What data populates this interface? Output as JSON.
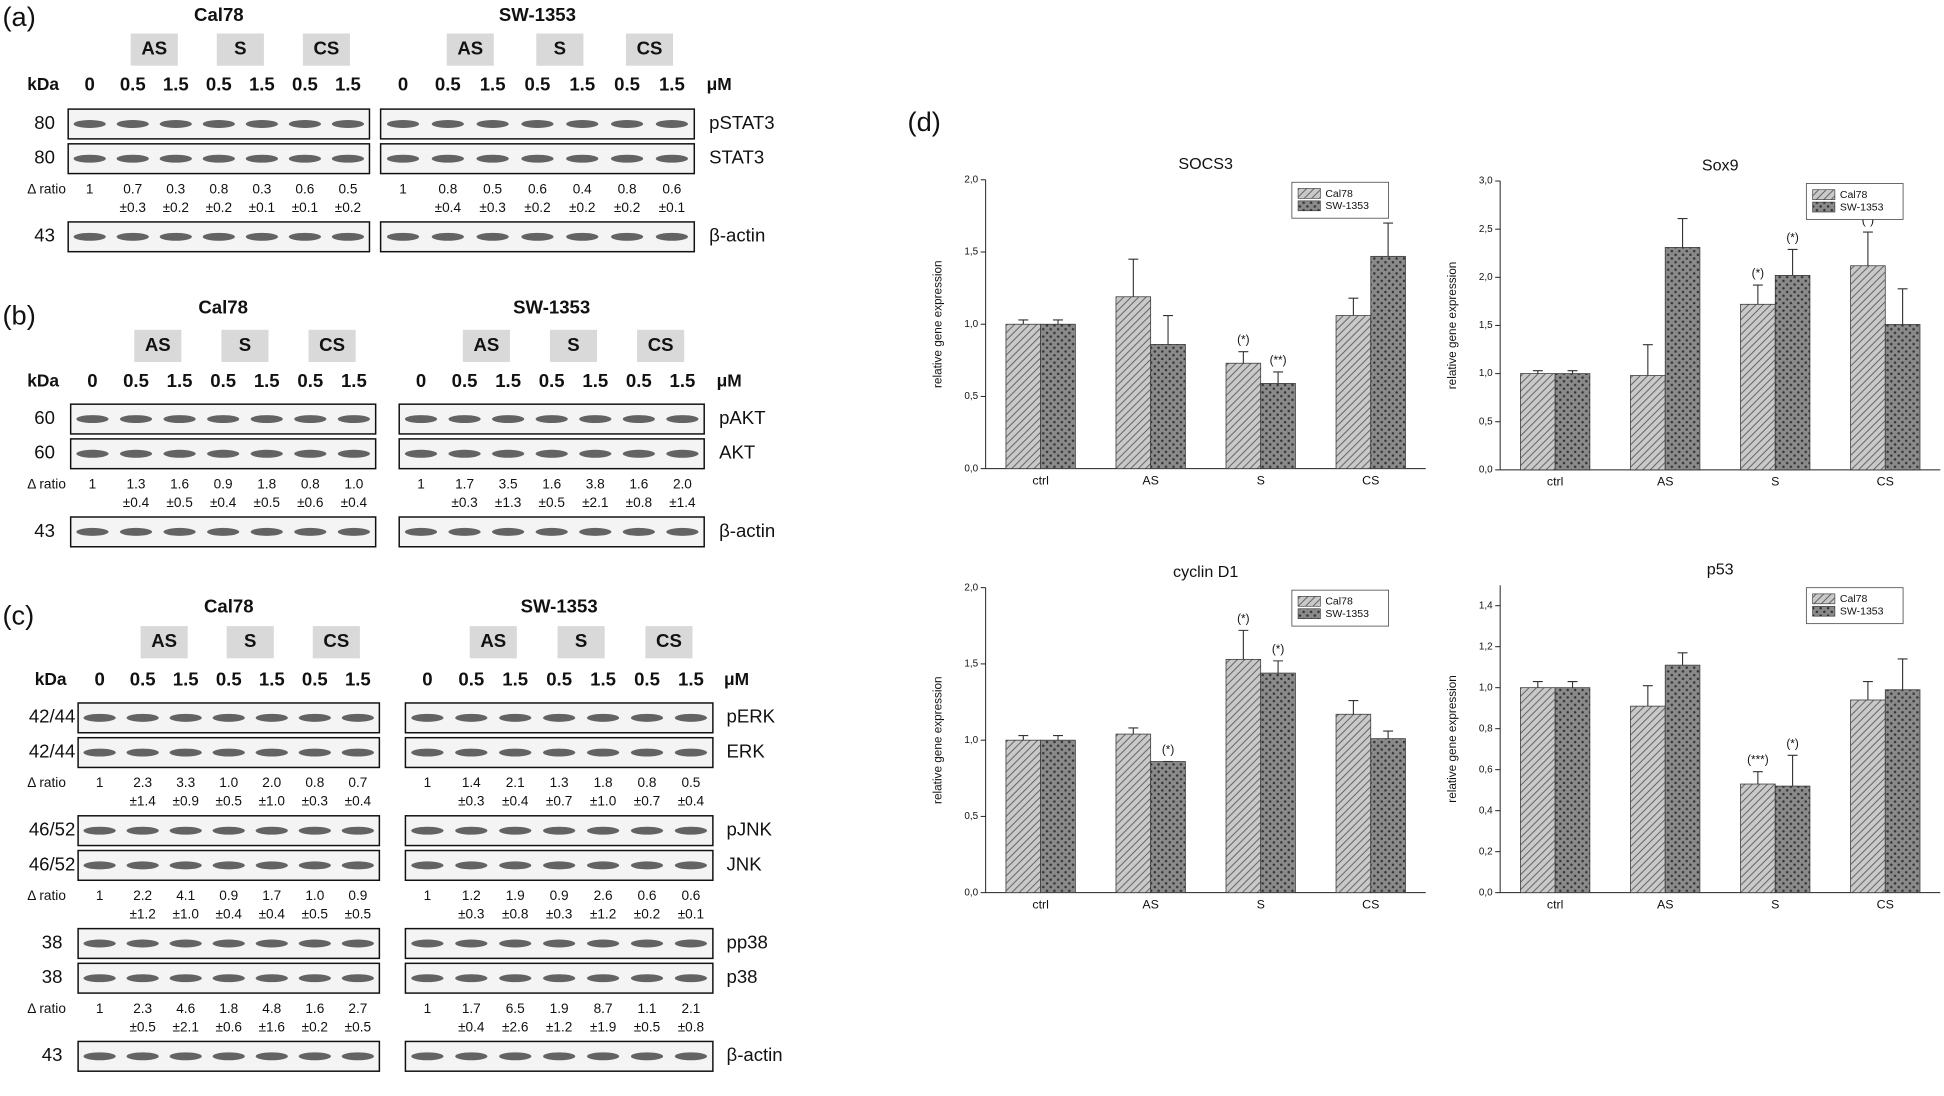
{
  "panels": [
    {
      "label": "(a)",
      "kda_label": "kDa",
      "unit": "μM",
      "cell_lines": [
        "Cal78",
        "SW-1353"
      ],
      "groups": [
        "AS",
        "S",
        "CS"
      ],
      "concentrations": [
        "0",
        "0.5",
        "1.5",
        "0.5",
        "1.5",
        "0.5",
        "1.5"
      ],
      "rows": [
        {
          "kda": "80",
          "protein": "pSTAT3"
        },
        {
          "kda": "80",
          "protein": "STAT3"
        },
        {
          "ratio_label": "Δ ratio",
          "means": [
            [
              "1",
              "0.7",
              "0.3",
              "0.8",
              "0.3",
              "0.6",
              "0.5"
            ],
            [
              "1",
              "0.8",
              "0.5",
              "0.6",
              "0.4",
              "0.8",
              "0.6"
            ]
          ],
          "sds": [
            [
              "±0.3",
              "±0.2",
              "±0.2",
              "±0.1",
              "±0.1",
              "±0.2"
            ],
            [
              "±0.4",
              "±0.3",
              "±0.2",
              "±0.2",
              "±0.2",
              "±0.1"
            ]
          ]
        },
        {
          "kda": "43",
          "protein": "β-actin"
        }
      ]
    },
    {
      "label": "(b)",
      "kda_label": "kDa",
      "unit": "μM",
      "cell_lines": [
        "Cal78",
        "SW-1353"
      ],
      "groups": [
        "AS",
        "S",
        "CS"
      ],
      "concentrations": [
        "0",
        "0.5",
        "1.5",
        "0.5",
        "1.5",
        "0.5",
        "1.5"
      ],
      "rows": [
        {
          "kda": "60",
          "protein": "pAKT"
        },
        {
          "kda": "60",
          "protein": "AKT"
        },
        {
          "ratio_label": "Δ ratio",
          "means": [
            [
              "1",
              "1.3",
              "1.6",
              "0.9",
              "1.8",
              "0.8",
              "1.0"
            ],
            [
              "1",
              "1.7",
              "3.5",
              "1.6",
              "3.8",
              "1.6",
              "2.0"
            ]
          ],
          "sds": [
            [
              "±0.4",
              "±0.5",
              "±0.4",
              "±0.5",
              "±0.6",
              "±0.4"
            ],
            [
              "±0.3",
              "±1.3",
              "±0.5",
              "±2.1",
              "±0.8",
              "±1.4"
            ]
          ]
        },
        {
          "kda": "43",
          "protein": "β-actin"
        }
      ]
    },
    {
      "label": "(c)",
      "kda_label": "kDa",
      "unit": "μM",
      "cell_lines": [
        "Cal78",
        "SW-1353"
      ],
      "groups": [
        "AS",
        "S",
        "CS"
      ],
      "concentrations": [
        "0",
        "0.5",
        "1.5",
        "0.5",
        "1.5",
        "0.5",
        "1.5"
      ],
      "rows": [
        {
          "kda": "42/44",
          "protein": "pERK"
        },
        {
          "kda": "42/44",
          "protein": "ERK"
        },
        {
          "ratio_label": "Δ ratio",
          "means": [
            [
              "1",
              "2.3",
              "3.3",
              "1.0",
              "2.0",
              "0.8",
              "0.7"
            ],
            [
              "1",
              "1.4",
              "2.1",
              "1.3",
              "1.8",
              "0.8",
              "0.5"
            ]
          ],
          "sds": [
            [
              "±1.4",
              "±0.9",
              "±0.5",
              "±1.0",
              "±0.3",
              "±0.4"
            ],
            [
              "±0.3",
              "±0.4",
              "±0.7",
              "±1.0",
              "±0.7",
              "±0.4"
            ]
          ]
        },
        {
          "kda": "46/52",
          "protein": "pJNK"
        },
        {
          "kda": "46/52",
          "protein": "JNK"
        },
        {
          "ratio_label": "Δ ratio",
          "means": [
            [
              "1",
              "2.2",
              "4.1",
              "0.9",
              "1.7",
              "1.0",
              "0.9"
            ],
            [
              "1",
              "1.2",
              "1.9",
              "0.9",
              "2.6",
              "0.6",
              "0.6"
            ]
          ],
          "sds": [
            [
              "±1.2",
              "±1.0",
              "±0.4",
              "±0.4",
              "±0.5",
              "±0.5"
            ],
            [
              "±0.3",
              "±0.8",
              "±0.3",
              "±1.2",
              "±0.2",
              "±0.1"
            ]
          ]
        },
        {
          "kda": "38",
          "protein": "pp38"
        },
        {
          "kda": "38",
          "protein": "p38"
        },
        {
          "ratio_label": "Δ ratio",
          "means": [
            [
              "1",
              "2.3",
              "4.6",
              "1.8",
              "4.8",
              "1.6",
              "2.7"
            ],
            [
              "1",
              "1.7",
              "6.5",
              "1.9",
              "8.7",
              "1.1",
              "2.1"
            ]
          ],
          "sds": [
            [
              "±0.5",
              "±2.1",
              "±0.6",
              "±1.6",
              "±0.2",
              "±0.5"
            ],
            [
              "±0.4",
              "±2.6",
              "±1.2",
              "±1.9",
              "±0.5",
              "±0.8"
            ]
          ]
        },
        {
          "kda": "43",
          "protein": "β-actin"
        }
      ]
    }
  ],
  "panel_d_label": "(d)",
  "chart_data": [
    {
      "type": "bar",
      "title": "SOCS3",
      "y_label": "relative gene expression",
      "categories": [
        "ctrl",
        "AS",
        "S",
        "CS"
      ],
      "legend": "upper right",
      "series": [
        {
          "name": "Cal78",
          "color": "#c9c9c9",
          "values": [
            1.0,
            1.19,
            0.73,
            1.06
          ],
          "errors": [
            0.03,
            0.26,
            0.08,
            0.12
          ],
          "annotations": [
            null,
            null,
            "(*)",
            null
          ]
        },
        {
          "name": "SW-1353",
          "color": "#8a8a8a",
          "values": [
            1.0,
            0.86,
            0.59,
            1.47
          ],
          "errors": [
            0.03,
            0.2,
            0.08,
            0.23
          ],
          "annotations": [
            null,
            null,
            "(**)",
            null
          ]
        }
      ],
      "ylim": [
        0,
        2
      ],
      "yticks": [
        {
          "value": 0,
          "label": "0,0"
        },
        {
          "value": 0.5,
          "label": "0,5"
        },
        {
          "value": 1,
          "label": "1,0"
        },
        {
          "value": 1.5,
          "label": "1,5"
        },
        {
          "value": 2,
          "label": "2,0"
        }
      ]
    },
    {
      "type": "bar",
      "title": "Sox9",
      "y_label": "relative gene expression",
      "categories": [
        "ctrl",
        "AS",
        "S",
        "CS"
      ],
      "legend": "upper right",
      "series": [
        {
          "name": "Cal78",
          "color": "#c9c9c9",
          "values": [
            1.0,
            0.98,
            1.72,
            2.12
          ],
          "errors": [
            0.03,
            0.32,
            0.2,
            0.35
          ],
          "annotations": [
            null,
            null,
            "(*)",
            "(*)"
          ]
        },
        {
          "name": "SW-1353",
          "color": "#8a8a8a",
          "values": [
            1.0,
            2.31,
            2.02,
            1.51
          ],
          "errors": [
            0.03,
            0.3,
            0.27,
            0.37
          ],
          "annotations": [
            null,
            null,
            "(*)",
            null
          ]
        }
      ],
      "ylim": [
        0,
        3
      ],
      "yticks": [
        {
          "value": 0,
          "label": "0,0"
        },
        {
          "value": 0.5,
          "label": "0,5"
        },
        {
          "value": 1,
          "label": "1,0"
        },
        {
          "value": 1.5,
          "label": "1,5"
        },
        {
          "value": 2,
          "label": "2,0"
        },
        {
          "value": 2.5,
          "label": "2,5"
        },
        {
          "value": 3,
          "label": "3,0"
        }
      ]
    },
    {
      "type": "bar",
      "title": "cyclin D1",
      "y_label": "relative gene expression",
      "categories": [
        "ctrl",
        "AS",
        "S",
        "CS"
      ],
      "legend": "upper right",
      "series": [
        {
          "name": "Cal78",
          "color": "#c9c9c9",
          "values": [
            1.0,
            1.04,
            1.53,
            1.17
          ],
          "errors": [
            0.03,
            0.04,
            0.19,
            0.09
          ],
          "annotations": [
            null,
            null,
            "(*)",
            null
          ]
        },
        {
          "name": "SW-1353",
          "color": "#8a8a8a",
          "values": [
            1.0,
            0.86,
            1.44,
            1.01
          ],
          "errors": [
            0.03,
            0.0,
            0.08,
            0.05
          ],
          "annotations": [
            null,
            "(*)",
            "(*)",
            null
          ]
        }
      ],
      "ylim": [
        0,
        2
      ],
      "yticks": [
        {
          "value": 0,
          "label": "0,0"
        },
        {
          "value": 0.5,
          "label": "0,5"
        },
        {
          "value": 1,
          "label": "1,0"
        },
        {
          "value": 1.5,
          "label": "1,5"
        },
        {
          "value": 2,
          "label": "2,0"
        }
      ]
    },
    {
      "type": "bar",
      "title": "p53",
      "y_label": "relative gene expression",
      "categories": [
        "ctrl",
        "AS",
        "S",
        "CS"
      ],
      "legend": "upper right",
      "series": [
        {
          "name": "Cal78",
          "color": "#c9c9c9",
          "values": [
            1.0,
            0.91,
            0.53,
            0.94
          ],
          "errors": [
            0.03,
            0.1,
            0.06,
            0.09
          ],
          "annotations": [
            null,
            null,
            "(***)",
            null
          ]
        },
        {
          "name": "SW-1353",
          "color": "#8a8a8a",
          "values": [
            1.0,
            1.11,
            0.52,
            0.99
          ],
          "errors": [
            0.03,
            0.06,
            0.15,
            0.15
          ],
          "annotations": [
            null,
            null,
            "(*)",
            null
          ]
        }
      ],
      "ylim": [
        0,
        1.5
      ],
      "yticks": [
        {
          "value": 0,
          "label": "0,0"
        },
        {
          "value": 0.2,
          "label": "0,2"
        },
        {
          "value": 0.4,
          "label": "0,4"
        },
        {
          "value": 0.6,
          "label": "0,6"
        },
        {
          "value": 0.8,
          "label": "0,8"
        },
        {
          "value": 1,
          "label": "1,0"
        },
        {
          "value": 1.2,
          "label": "1,2"
        },
        {
          "value": 1.4,
          "label": "1,4"
        }
      ]
    }
  ]
}
